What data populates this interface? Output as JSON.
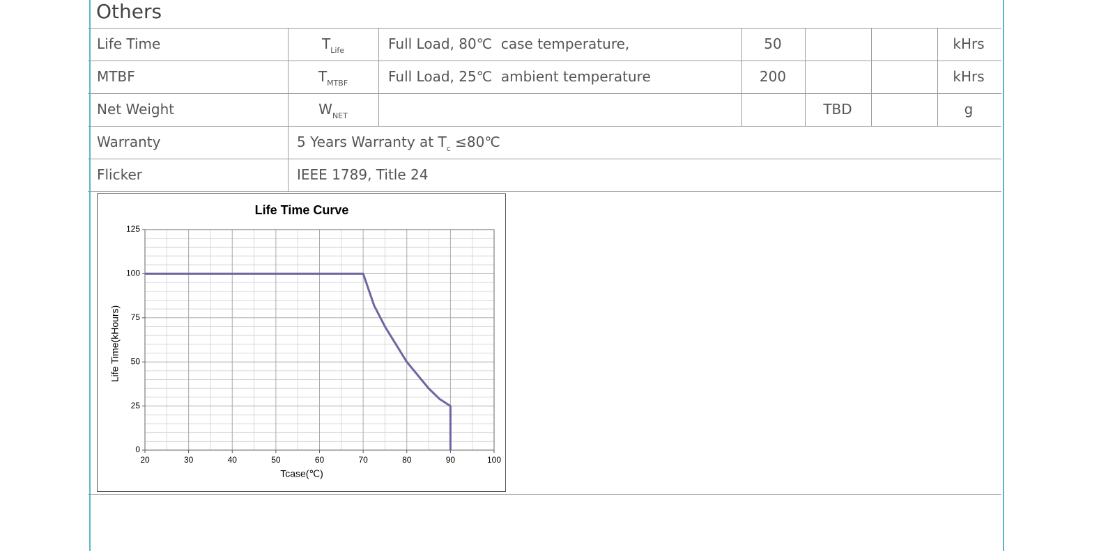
{
  "section_title": "Others",
  "table": {
    "rows": [
      {
        "parameter": "Life Time",
        "symbol": {
          "base": "T",
          "sub": "Life"
        },
        "condition": "Full Load, 80℃  case temperature,",
        "min": 50,
        "unit": "kHrs"
      },
      {
        "parameter": "MTBF",
        "symbol": {
          "base": "T",
          "sub": "MTBF"
        },
        "condition": "Full Load, 25℃  ambient temperature",
        "min": 200,
        "unit": "kHrs"
      },
      {
        "parameter": "Net Weight",
        "symbol": {
          "base": "W",
          "sub": "NET"
        },
        "typ": "TBD",
        "unit": "g"
      },
      {
        "parameter": "Warranty",
        "note": {
          "text": "5 Years Warranty at T",
          "sub": "c",
          "after": " ≤80℃"
        }
      },
      {
        "parameter": "Flicker",
        "note": {
          "text": "IEEE 1789, Title 24"
        }
      }
    ]
  },
  "chart_data": {
    "type": "line",
    "title": "Life Time Curve",
    "x_label": "Tcase(℃)",
    "y_label": "Life Time(kHours)",
    "x": [
      20,
      70,
      72.5,
      75,
      80,
      85,
      87.5,
      90,
      90
    ],
    "values": [
      100,
      100,
      82,
      70,
      50,
      35,
      29,
      25,
      0
    ],
    "color": "#6b67a0",
    "xlim": [
      20,
      100
    ],
    "xticks": [
      20,
      30,
      40,
      50,
      60,
      70,
      80,
      90,
      100
    ],
    "ylim": [
      0,
      125
    ],
    "yticks": [
      0,
      25,
      50,
      75,
      100,
      125
    ],
    "grid": true
  }
}
